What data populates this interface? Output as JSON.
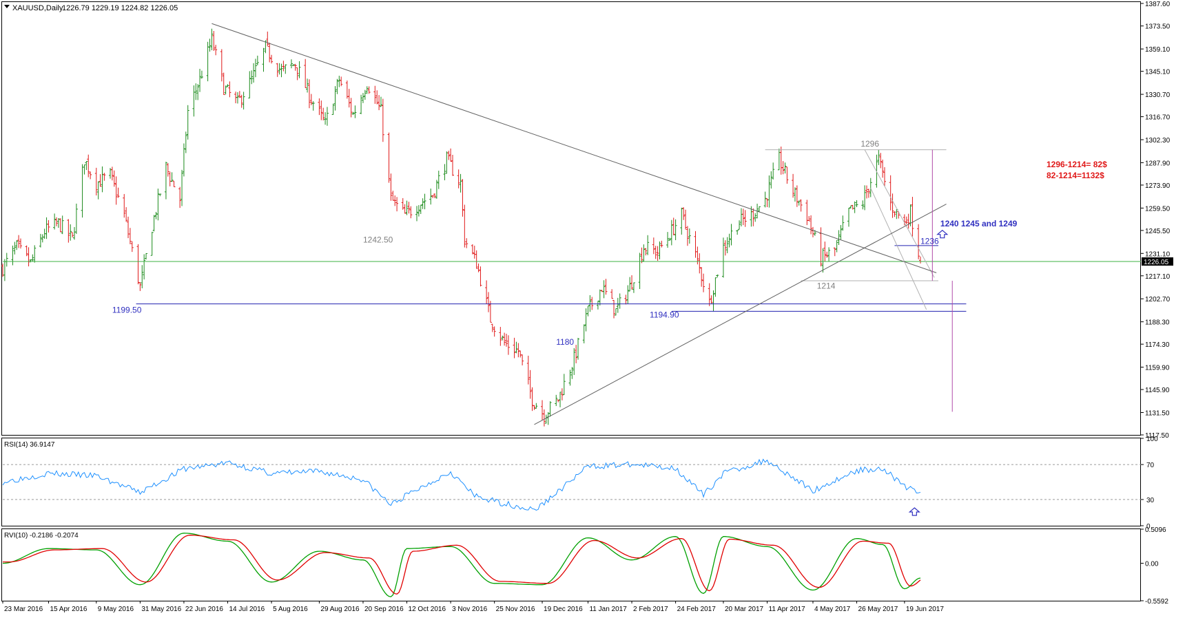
{
  "colors": {
    "background": "#ffffff",
    "frame": "#000000",
    "bull": "#1a8a1a",
    "bear": "#e01818",
    "rsi_line": "#1e90ff",
    "rvi_main": "#00a000",
    "rvi_signal": "#e00000",
    "trendline": "#606060",
    "channel": "#b0b0b0",
    "support": "#2020b0",
    "current_price_line": "#3cb043",
    "target_line": "#b04aa8",
    "label_blue": "#3030c0",
    "label_gray": "#808080",
    "label_red": "#e01818",
    "price_tag_bg": "#000000",
    "price_tag_text": "#ffffff"
  },
  "header": {
    "symbol_text": "XAUUSD,Daily",
    "ohlc_text": "1226.79 1229.19 1224.82 1226.05",
    "menu_icon": "triangle-down-icon"
  },
  "price_axis": {
    "ticks": [
      "1387.60",
      "1373.50",
      "1359.10",
      "1345.10",
      "1330.70",
      "1316.70",
      "1302.30",
      "1287.90",
      "1273.90",
      "1259.50",
      "1245.50",
      "1231.10",
      "1217.10",
      "1202.70",
      "1188.30",
      "1174.30",
      "1159.90",
      "1145.90",
      "1131.50",
      "1117.50"
    ],
    "current_price": "1226.05"
  },
  "date_axis": {
    "labels": [
      "23 Mar 2016",
      "15 Apr 2016",
      "9 May 2016",
      "31 May 2016",
      "22 Jun 2016",
      "14 Jul 2016",
      "5 Aug 2016",
      "29 Aug 2016",
      "20 Sep 2016",
      "12 Oct 2016",
      "3 Nov 2016",
      "25 Nov 2016",
      "19 Dec 2016",
      "11 Jan 2017",
      "2 Feb 2017",
      "24 Feb 2017",
      "20 Mar 2017",
      "11 Apr 2017",
      "4 May 2017",
      "26 May 2017",
      "19 Jun 2017"
    ]
  },
  "chart_data": [
    {
      "type": "ohlc",
      "symbol": "XAUUSD",
      "timeframe": "Daily",
      "last_bar": {
        "open": 1226.79,
        "high": 1229.19,
        "low": 1224.82,
        "close": 1226.05
      },
      "ylim": [
        1117.5,
        1387.6
      ],
      "x_range": [
        "23 Mar 2016",
        "27 Jun 2017"
      ],
      "bar_colors": {
        "up": "green",
        "down": "red"
      },
      "horizontal_lines": [
        {
          "value": 1226.05,
          "label": "1226.05",
          "role": "current price"
        },
        {
          "value": 1199.5,
          "label": "1199.50",
          "role": "support"
        },
        {
          "value": 1194.9,
          "label": "",
          "role": "support"
        },
        {
          "value": 1236,
          "label": "1236",
          "role": "resistance segment"
        },
        {
          "value": 1296,
          "label": "1296",
          "role": "range high"
        },
        {
          "value": 1214,
          "label": "1214",
          "role": "range low"
        }
      ],
      "annotations": [
        {
          "text": "1199.50",
          "date": "31 May 2016",
          "value": 1199.5
        },
        {
          "text": "1242.50",
          "date": "12 Oct 2016",
          "value": 1242.5
        },
        {
          "text": "1180",
          "date": "2 Jan 2017",
          "value": 1180
        },
        {
          "text": "1194.90",
          "date": "24 Feb 2017",
          "value": 1194.9
        },
        {
          "text": "1296",
          "date": "26 May 2017",
          "value": 1296
        },
        {
          "text": "1214",
          "date": "8 May 2017",
          "value": 1214
        },
        {
          "text": "1236",
          "date": "30 Jun 2017",
          "value": 1236
        },
        {
          "text": "1240 1245 and 1249",
          "date": "28 Jun 2017",
          "value": 1249
        },
        {
          "text": "1296-1214= 82$",
          "color": "red"
        },
        {
          "text": "82-1214=1132$",
          "color": "red"
        }
      ],
      "trendlines": [
        {
          "from": {
            "date": "6 Jul 2016",
            "value": 1375
          },
          "to": {
            "date": "5 Jul 2017",
            "value": 1219
          }
        },
        {
          "from": {
            "date": "15 Dec 2016",
            "value": 1124
          },
          "to": {
            "date": "10 Jul 2017",
            "value": 1262
          }
        }
      ],
      "price_path": [
        [
          "23 Mar 2016",
          1222
        ],
        [
          "30 Mar 2016",
          1235
        ],
        [
          "6 Apr 2016",
          1225
        ],
        [
          "13 Apr 2016",
          1245
        ],
        [
          "20 Apr 2016",
          1250
        ],
        [
          "27 Apr 2016",
          1240
        ],
        [
          "3 May 2016",
          1290
        ],
        [
          "9 May 2016",
          1275
        ],
        [
          "16 May 2016",
          1280
        ],
        [
          "23 May 2016",
          1255
        ],
        [
          "31 May 2016",
          1210
        ],
        [
          "6 Jun 2016",
          1248
        ],
        [
          "13 Jun 2016",
          1285
        ],
        [
          "20 Jun 2016",
          1265
        ],
        [
          "24 Jun 2016",
          1320
        ],
        [
          "30 Jun 2016",
          1340
        ],
        [
          "6 Jul 2016",
          1365
        ],
        [
          "12 Jul 2016",
          1335
        ],
        [
          "19 Jul 2016",
          1325
        ],
        [
          "26 Jul 2016",
          1340
        ],
        [
          "2 Aug 2016",
          1360
        ],
        [
          "10 Aug 2016",
          1345
        ],
        [
          "17 Aug 2016",
          1350
        ],
        [
          "24 Aug 2016",
          1330
        ],
        [
          "1 Sep 2016",
          1312
        ],
        [
          "8 Sep 2016",
          1340
        ],
        [
          "15 Sep 2016",
          1318
        ],
        [
          "22 Sep 2016",
          1338
        ],
        [
          "29 Sep 2016",
          1320
        ],
        [
          "4 Oct 2016",
          1265
        ],
        [
          "11 Oct 2016",
          1255
        ],
        [
          "18 Oct 2016",
          1262
        ],
        [
          "25 Oct 2016",
          1268
        ],
        [
          "1 Nov 2016",
          1290
        ],
        [
          "8 Nov 2016",
          1275
        ],
        [
          "10 Nov 2016",
          1240
        ],
        [
          "16 Nov 2016",
          1225
        ],
        [
          "23 Nov 2016",
          1190
        ],
        [
          "30 Nov 2016",
          1175
        ],
        [
          "7 Dec 2016",
          1170
        ],
        [
          "14 Dec 2016",
          1140
        ],
        [
          "20 Dec 2016",
          1130
        ],
        [
          "27 Dec 2016",
          1140
        ],
        [
          "4 Jan 2017",
          1165
        ],
        [
          "11 Jan 2017",
          1195
        ],
        [
          "18 Jan 2017",
          1210
        ],
        [
          "25 Jan 2017",
          1195
        ],
        [
          "1 Feb 2017",
          1210
        ],
        [
          "8 Feb 2017",
          1235
        ],
        [
          "15 Feb 2017",
          1232
        ],
        [
          "22 Feb 2017",
          1245
        ],
        [
          "27 Feb 2017",
          1255
        ],
        [
          "6 Mar 2017",
          1230
        ],
        [
          "13 Mar 2017",
          1200
        ],
        [
          "20 Mar 2017",
          1235
        ],
        [
          "27 Mar 2017",
          1250
        ],
        [
          "3 Apr 2017",
          1255
        ],
        [
          "10 Apr 2017",
          1265
        ],
        [
          "17 Apr 2017",
          1290
        ],
        [
          "24 Apr 2017",
          1270
        ],
        [
          "1 May 2017",
          1255
        ],
        [
          "8 May 2017",
          1228
        ],
        [
          "15 May 2017",
          1233
        ],
        [
          "22 May 2017",
          1257
        ],
        [
          "29 May 2017",
          1263
        ],
        [
          "6 Jun 2017",
          1290
        ],
        [
          "12 Jun 2017",
          1262
        ],
        [
          "19 Jun 2017",
          1250
        ],
        [
          "22 Jun 2017",
          1257
        ],
        [
          "27 Jun 2017",
          1226
        ]
      ]
    },
    {
      "type": "line",
      "indicator": "RSI(14)",
      "header_text": "RSI(14) 36.9147",
      "last_value": 36.9147,
      "ylim": [
        0,
        100
      ],
      "tick_labels": [
        "100",
        "70",
        "30",
        "0"
      ],
      "levels": [
        70,
        30
      ],
      "x": [
        "23 Mar 2016",
        "15 Apr 2016",
        "9 May 2016",
        "31 May 2016",
        "22 Jun 2016",
        "14 Jul 2016",
        "5 Aug 2016",
        "29 Aug 2016",
        "20 Sep 2016",
        "4 Oct 2016",
        "12 Oct 2016",
        "3 Nov 2016",
        "15 Nov 2016",
        "25 Nov 2016",
        "15 Dec 2016",
        "19 Dec 2016",
        "11 Jan 2017",
        "2 Feb 2017",
        "24 Feb 2017",
        "10 Mar 2017",
        "20 Mar 2017",
        "11 Apr 2017",
        "4 May 2017",
        "26 May 2017",
        "8 Jun 2017",
        "19 Jun 2017",
        "27 Jun 2017"
      ],
      "values": [
        50,
        60,
        57,
        38,
        65,
        72,
        60,
        62,
        53,
        24,
        35,
        62,
        34,
        28,
        18,
        24,
        68,
        70,
        66,
        35,
        60,
        75,
        40,
        63,
        66,
        45,
        37
      ]
    },
    {
      "type": "line",
      "indicator": "RVI(10)",
      "header_text": "RVI(10) -0.2186 -0.2074",
      "ylim": [
        -0.5592,
        0.5096
      ],
      "tick_labels": [
        "0.5096",
        "0.00",
        "-0.5592"
      ],
      "series": [
        {
          "name": "RVI",
          "last_value": -0.2186,
          "x": [
            "23 Mar 2016",
            "15 Apr 2016",
            "9 May 2016",
            "31 May 2016",
            "22 Jun 2016",
            "14 Jul 2016",
            "5 Aug 2016",
            "29 Aug 2016",
            "20 Sep 2016",
            "4 Oct 2016",
            "12 Oct 2016",
            "3 Nov 2016",
            "25 Nov 2016",
            "19 Dec 2016",
            "11 Jan 2017",
            "2 Feb 2017",
            "24 Feb 2017",
            "10 Mar 2017",
            "20 Mar 2017",
            "11 Apr 2017",
            "4 May 2017",
            "26 May 2017",
            "8 Jun 2017",
            "19 Jun 2017",
            "27 Jun 2017"
          ],
          "values": [
            0.0,
            0.22,
            0.2,
            -0.32,
            0.45,
            0.33,
            -0.28,
            0.18,
            0.05,
            -0.5,
            0.22,
            0.25,
            -0.3,
            -0.32,
            0.38,
            0.05,
            0.4,
            -0.45,
            0.4,
            0.25,
            -0.4,
            0.37,
            0.28,
            -0.38,
            -0.22
          ]
        },
        {
          "name": "Signal",
          "last_value": -0.2074,
          "x": [
            "23 Mar 2016",
            "15 Apr 2016",
            "9 May 2016",
            "31 May 2016",
            "22 Jun 2016",
            "14 Jul 2016",
            "5 Aug 2016",
            "29 Aug 2016",
            "20 Sep 2016",
            "4 Oct 2016",
            "12 Oct 2016",
            "3 Nov 2016",
            "25 Nov 2016",
            "19 Dec 2016",
            "11 Jan 2017",
            "2 Feb 2017",
            "24 Feb 2017",
            "10 Mar 2017",
            "20 Mar 2017",
            "11 Apr 2017",
            "4 May 2017",
            "26 May 2017",
            "8 Jun 2017",
            "19 Jun 2017",
            "27 Jun 2017"
          ],
          "values": [
            0.02,
            0.2,
            0.22,
            -0.28,
            0.42,
            0.35,
            -0.25,
            0.16,
            0.08,
            -0.46,
            0.18,
            0.27,
            -0.27,
            -0.3,
            0.34,
            0.08,
            0.37,
            -0.41,
            0.36,
            0.27,
            -0.36,
            0.33,
            0.3,
            -0.34,
            -0.21
          ]
        }
      ]
    }
  ]
}
